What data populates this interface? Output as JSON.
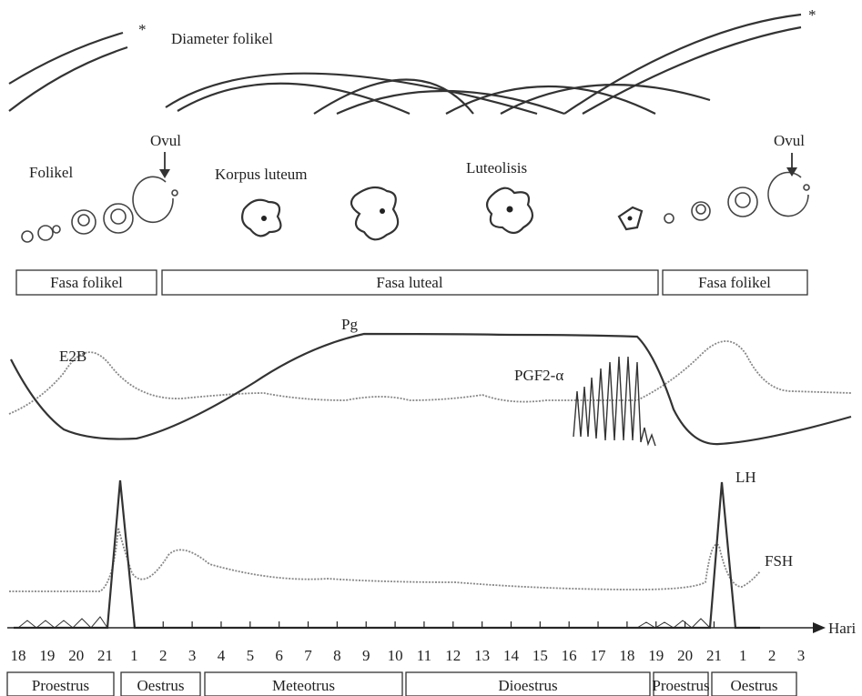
{
  "top_labels": {
    "diameter": "Diameter folikel",
    "star_left": "*",
    "star_right": "*"
  },
  "stage_labels": [
    "Folikel",
    "Ovul",
    "Korpus luteum",
    "Luteolisis",
    "Ovul"
  ],
  "phases": [
    "Fasa folikel",
    "Fasa luteal",
    "Fasa folikel"
  ],
  "hormones": [
    "E2B",
    "Pg",
    "PGF2-α",
    "LH",
    "FSH"
  ],
  "axis_label": "Hari",
  "days": [
    "18",
    "19",
    "20",
    "21",
    "1",
    "2",
    "3",
    "4",
    "5",
    "6",
    "7",
    "8",
    "9",
    "10",
    "11",
    "12",
    "13",
    "14",
    "15",
    "16",
    "17",
    "18",
    "19",
    "20",
    "21",
    "1",
    "2",
    "3"
  ],
  "stages": [
    "Proestrus",
    "Oestrus",
    "Meteotrus",
    "Dioestrus",
    "Proestrus",
    "Oestrus"
  ]
}
